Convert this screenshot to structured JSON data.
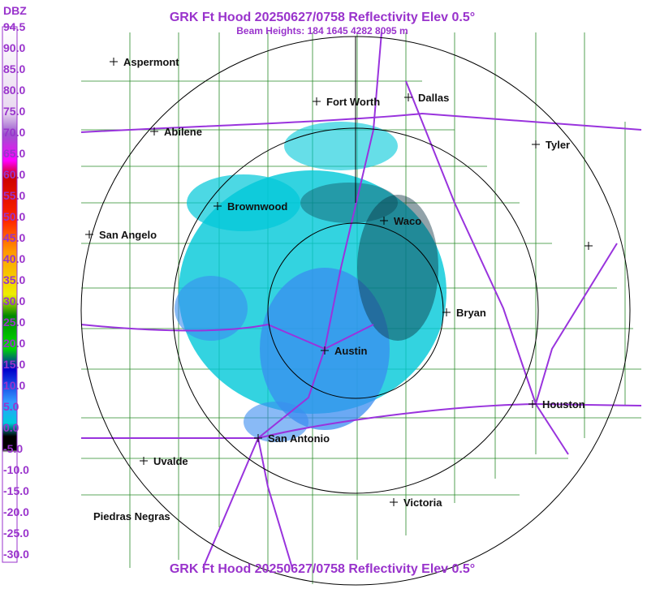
{
  "header": {
    "title": "GRK Ft Hood 20250627/0758 Reflectivity Elev 0.5°",
    "subtitle": "Beam Heights: 184 1645 4282 8095 m"
  },
  "legend": {
    "unit": "DBZ",
    "labels": [
      "94.5",
      "90.0",
      "85.0",
      "80.0",
      "75.0",
      "70.0",
      "65.0",
      "60.0",
      "55.0",
      "50.0",
      "45.0",
      "40.0",
      "35.0",
      "30.0",
      "25.0",
      "20.0",
      "15.0",
      "10.0",
      "5.0",
      "0.0",
      "-5.0",
      "-10.0",
      "-15.0",
      "-20.0",
      "-25.0",
      "-30.0"
    ]
  },
  "cities": [
    "Aspermont",
    "Fort Worth",
    "Dallas",
    "Abilene",
    "Tyler",
    "Brownwood",
    "Waco",
    "San Angelo",
    "Bryan",
    "Austin",
    "Houston",
    "San Antonio",
    "Uvalde",
    "Victoria",
    "Piedras Negras"
  ],
  "footer": {
    "title": "GRK Ft Hood 20250627/0758 Reflectivity Elev 0.5°"
  }
}
